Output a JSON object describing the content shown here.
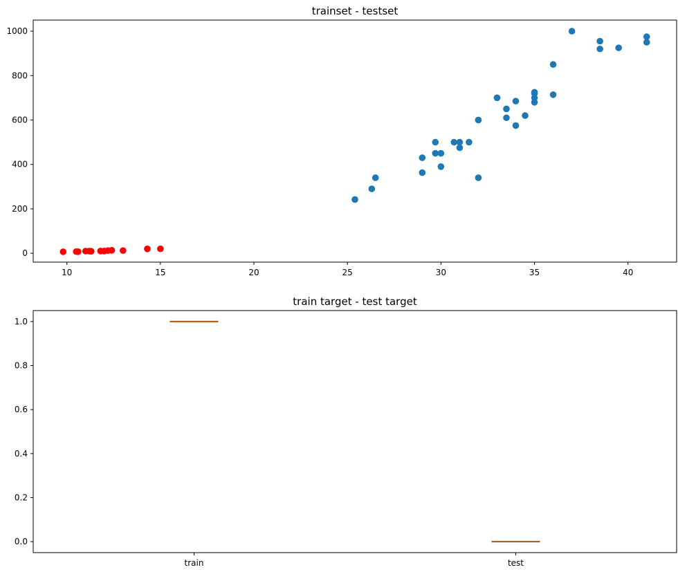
{
  "chart_data": [
    {
      "type": "scatter",
      "title": "trainset - testset",
      "xlabel": "",
      "ylabel": "",
      "xlim": [
        8.2,
        42.6
      ],
      "ylim": [
        -40,
        1050
      ],
      "xticks": [
        10,
        15,
        20,
        25,
        30,
        35,
        40
      ],
      "yticks": [
        0,
        200,
        400,
        600,
        800,
        1000
      ],
      "grid": false,
      "series": [
        {
          "color": "#1f77b4",
          "points": [
            [
              25.4,
              242
            ],
            [
              26.3,
              290
            ],
            [
              26.5,
              340
            ],
            [
              29.0,
              363
            ],
            [
              29.0,
              430
            ],
            [
              29.7,
              450
            ],
            [
              29.7,
              500
            ],
            [
              30.0,
              450
            ],
            [
              30.0,
              390
            ],
            [
              30.7,
              500
            ],
            [
              31.0,
              500
            ],
            [
              31.0,
              475
            ],
            [
              31.5,
              500
            ],
            [
              32.0,
              340
            ],
            [
              32.0,
              600
            ],
            [
              32.0,
              600
            ],
            [
              33.0,
              700
            ],
            [
              33.0,
              700
            ],
            [
              33.5,
              610
            ],
            [
              33.5,
              650
            ],
            [
              34.0,
              575
            ],
            [
              34.0,
              685
            ],
            [
              34.5,
              620
            ],
            [
              35.0,
              680
            ],
            [
              35.0,
              700
            ],
            [
              35.0,
              725
            ],
            [
              35.0,
              720
            ],
            [
              36.0,
              714
            ],
            [
              36.0,
              850
            ],
            [
              37.0,
              1000
            ],
            [
              38.5,
              920
            ],
            [
              38.5,
              955
            ],
            [
              39.5,
              925
            ],
            [
              41.0,
              975
            ],
            [
              41.0,
              950
            ]
          ]
        },
        {
          "color": "#ff0000",
          "points": [
            [
              9.8,
              6.7
            ],
            [
              10.5,
              7.5
            ],
            [
              10.6,
              7.0
            ],
            [
              11.0,
              9.7
            ],
            [
              11.2,
              9.8
            ],
            [
              11.3,
              8.7
            ],
            [
              11.8,
              10.0
            ],
            [
              12.0,
              9.9
            ],
            [
              12.2,
              12.2
            ],
            [
              12.4,
              13.4
            ],
            [
              13.0,
              12.2
            ],
            [
              14.3,
              19.7
            ],
            [
              15.0,
              19.9
            ]
          ]
        }
      ]
    },
    {
      "type": "box",
      "title": "train target - test target",
      "xlabel": "",
      "ylabel": "",
      "categories": [
        "train",
        "test"
      ],
      "values": [
        1.0,
        0.0
      ],
      "ylim": [
        -0.05,
        1.05
      ],
      "yticks": [
        "0.0",
        "0.2",
        "0.4",
        "0.6",
        "0.8",
        "1.0"
      ],
      "box_color": "#000000",
      "median_color": "#ff7f0e",
      "grid": false
    }
  ]
}
